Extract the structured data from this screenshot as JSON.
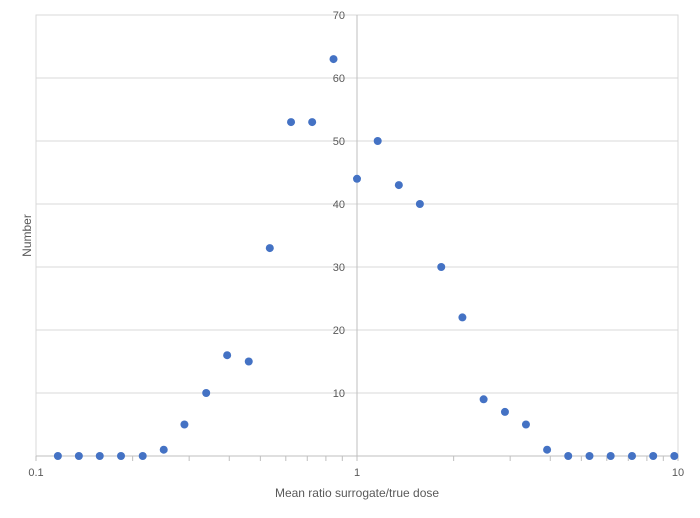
{
  "chart_data": {
    "type": "scatter",
    "title": "",
    "xlabel": "Mean ratio surrogate/true dose",
    "ylabel": "Number",
    "x_scale": "log",
    "xlim": [
      0.1,
      10
    ],
    "ylim": [
      0,
      70
    ],
    "grid": "horizontal",
    "x_ticks": [
      "0.1",
      "1",
      "10"
    ],
    "y_ticks": [
      "10",
      "20",
      "30",
      "40",
      "50",
      "60",
      "70"
    ],
    "marker_color": "#4472C4",
    "gridline_color": "#D9D9D9",
    "series": [
      {
        "points": [
          {
            "x": 0.117,
            "y": 0
          },
          {
            "x": 0.136,
            "y": 0
          },
          {
            "x": 0.158,
            "y": 0
          },
          {
            "x": 0.184,
            "y": 0
          },
          {
            "x": 0.215,
            "y": 0
          },
          {
            "x": 0.25,
            "y": 1
          },
          {
            "x": 0.29,
            "y": 5
          },
          {
            "x": 0.339,
            "y": 10
          },
          {
            "x": 0.394,
            "y": 16
          },
          {
            "x": 0.46,
            "y": 15
          },
          {
            "x": 0.535,
            "y": 33
          },
          {
            "x": 0.623,
            "y": 53
          },
          {
            "x": 0.725,
            "y": 53
          },
          {
            "x": 0.845,
            "y": 63
          },
          {
            "x": 1.0,
            "y": 44
          },
          {
            "x": 1.16,
            "y": 50
          },
          {
            "x": 1.35,
            "y": 43
          },
          {
            "x": 1.57,
            "y": 40
          },
          {
            "x": 1.83,
            "y": 30
          },
          {
            "x": 2.13,
            "y": 22
          },
          {
            "x": 2.48,
            "y": 9
          },
          {
            "x": 2.89,
            "y": 7
          },
          {
            "x": 3.36,
            "y": 5
          },
          {
            "x": 3.91,
            "y": 1
          },
          {
            "x": 4.55,
            "y": 0
          },
          {
            "x": 5.3,
            "y": 0
          },
          {
            "x": 6.17,
            "y": 0
          },
          {
            "x": 7.19,
            "y": 0
          },
          {
            "x": 8.37,
            "y": 0
          },
          {
            "x": 9.74,
            "y": 0
          }
        ]
      }
    ]
  }
}
